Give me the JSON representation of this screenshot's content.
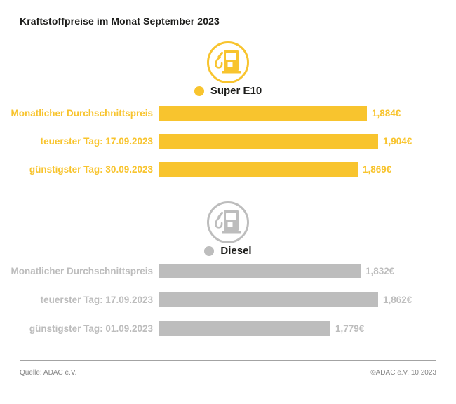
{
  "title": "Kraftstoffpreise im Monat September 2023",
  "footer": {
    "source": "Quelle: ADAC e.V.",
    "copyright": "©ADAC e.V. 10.2023"
  },
  "colors": {
    "super_e10_yellow": "#F8C42E",
    "diesel_gray": "#BDBDBD",
    "text": "#1D1D1B",
    "footer_text": "#868686"
  },
  "chart_data": [
    {
      "type": "bar",
      "title": "Super E10",
      "icon": "fuel-pump-icon",
      "color": "#F8C42E",
      "unit": "€",
      "categories": [
        "Monatlicher Durchschnittspreis",
        "teuerster Tag: 17.09.2023",
        "günstigster Tag: 30.09.2023"
      ],
      "values": [
        1.884,
        1.904,
        1.869
      ],
      "value_labels": [
        "1,884€",
        "1,904€",
        "1,869€"
      ],
      "orientation": "horizontal",
      "axis_visible": false
    },
    {
      "type": "bar",
      "title": "Diesel",
      "icon": "fuel-pump-icon",
      "color": "#BDBDBD",
      "unit": "€",
      "categories": [
        "Monatlicher Durchschnittspreis",
        "teuerster Tag: 17.09.2023",
        "günstigster Tag: 01.09.2023"
      ],
      "values": [
        1.832,
        1.862,
        1.779
      ],
      "value_labels": [
        "1,832€",
        "1,862€",
        "1,779€"
      ],
      "orientation": "horizontal",
      "axis_visible": false
    }
  ]
}
